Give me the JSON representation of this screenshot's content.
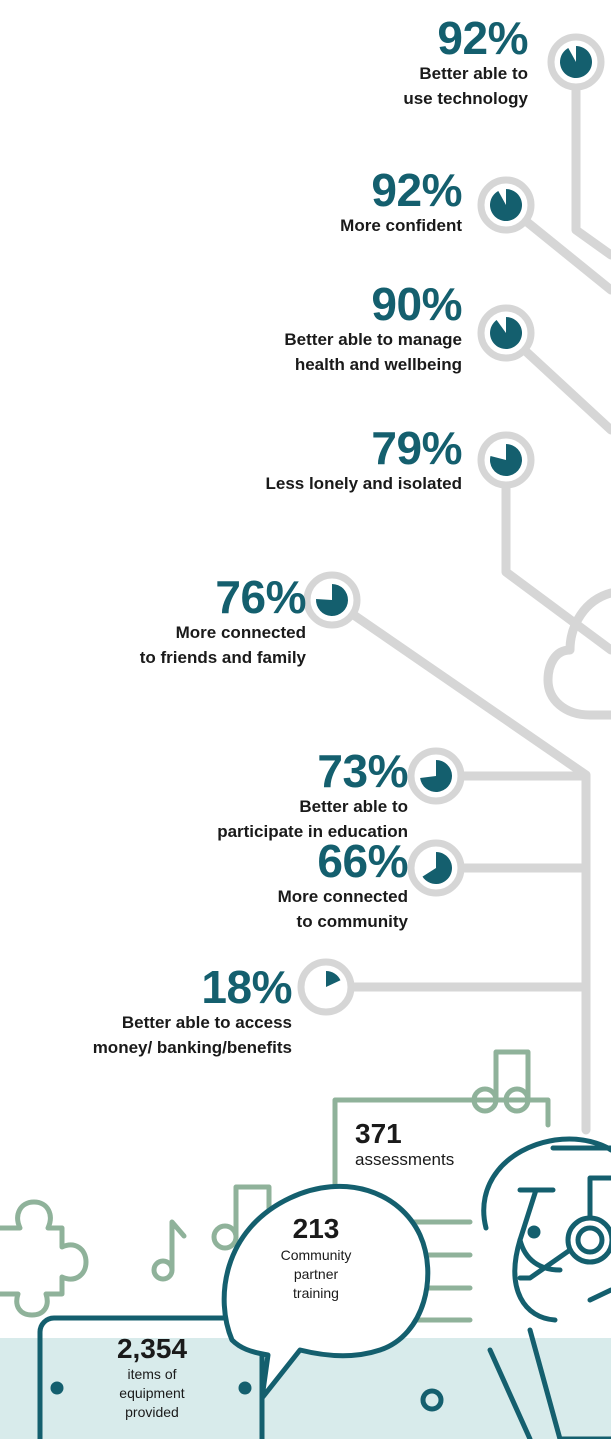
{
  "colors": {
    "teal": "#145f6e",
    "grey": "#d6d6d6",
    "sage": "#8fb29a",
    "light_teal_bg": "#d8ebeb"
  },
  "stats": [
    {
      "percent_text": "92%",
      "value": 92,
      "label": "Better able to\nuse technology"
    },
    {
      "percent_text": "92%",
      "value": 92,
      "label": "More confident"
    },
    {
      "percent_text": "90%",
      "value": 90,
      "label": "Better able to manage\nhealth and wellbeing"
    },
    {
      "percent_text": "79%",
      "value": 79,
      "label": "Less lonely and isolated"
    },
    {
      "percent_text": "76%",
      "value": 76,
      "label": "More connected\nto friends and family"
    },
    {
      "percent_text": "73%",
      "value": 73,
      "label": "Better able to\nparticipate in education"
    },
    {
      "percent_text": "66%",
      "value": 66,
      "label": "More connected\nto community"
    },
    {
      "percent_text": "18%",
      "value": 18,
      "label": "Better able to access\nmoney/ banking/benefits"
    }
  ],
  "figures": {
    "assessments": {
      "number": "371",
      "label": "assessments"
    },
    "training": {
      "number": "213",
      "label": "Community\npartner\ntraining"
    },
    "equipment": {
      "number": "2,354",
      "label": "items of\nequipment\nprovided"
    }
  },
  "icons": [
    "puzzle-icon",
    "music-note-icon",
    "headset-person-icon",
    "cloud-icon",
    "clipboard-icon"
  ]
}
